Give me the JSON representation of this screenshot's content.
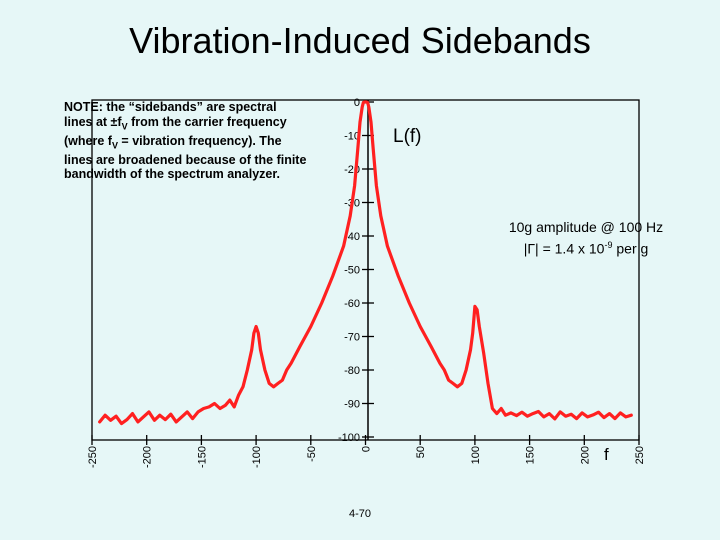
{
  "slide": {
    "title": "Vibration-Induced Sidebands",
    "footer": "4-70"
  },
  "note": {
    "lines": [
      "NOTE: the “sidebands” are spectral",
      "lines at ±f",
      "V",
      " from the carrier frequency",
      "(where f",
      "V",
      " = vibration frequency). The",
      "lines are broadened because of the finite",
      "bandwidth of the spectrum analyzer."
    ]
  },
  "annotation": {
    "line1": "10g amplitude @ 100 Hz",
    "line2_prefix": "|Γ| = 1.4 x 10",
    "line2_exp": "-9",
    "line2_suffix": " per g"
  },
  "colors": {
    "background": "#e6f7f7",
    "trace": "#ff2020",
    "axis": "#000000"
  },
  "chart_data": {
    "type": "line",
    "title": "",
    "xlabel": "f",
    "ylabel": "L(f)",
    "xlim": [
      -250,
      250
    ],
    "ylim": [
      -100,
      0
    ],
    "x_ticks": [
      -250,
      -200,
      -150,
      -100,
      -50,
      0,
      50,
      100,
      150,
      200,
      250
    ],
    "y_ticks": [
      0,
      -10,
      -20,
      -30,
      -40,
      -50,
      -60,
      -70,
      -80,
      -90,
      -100
    ],
    "series": [
      {
        "x": [
          -243,
          -238,
          -233,
          -228,
          -223,
          -218,
          -213,
          -208,
          -203,
          -198,
          -193,
          -188,
          -183,
          -178,
          -173,
          -168,
          -163,
          -158,
          -153,
          -148,
          -143,
          -138,
          -133,
          -128,
          -124,
          -120,
          -116,
          -112,
          -108,
          -104,
          -102,
          -100,
          -98,
          -96,
          -92,
          -88,
          -84,
          -80,
          -76,
          -72,
          -68,
          -60,
          -50,
          -40,
          -30,
          -20,
          -14,
          -10,
          -7,
          -5,
          -3,
          -2,
          -1,
          0,
          1,
          2,
          3,
          5,
          7,
          10,
          14,
          20,
          30,
          40,
          50,
          60,
          68,
          72,
          76,
          80,
          84,
          88,
          92,
          96,
          98,
          100,
          102,
          104,
          108,
          112,
          116,
          120,
          124,
          128,
          133,
          138,
          143,
          148,
          153,
          158,
          163,
          168,
          173,
          178,
          183,
          188,
          193,
          198,
          203,
          208,
          213,
          218,
          223,
          228,
          233,
          238,
          243
        ],
        "values": [
          -95.5,
          -93.5,
          -95,
          -93.8,
          -96,
          -94.8,
          -93,
          -95.5,
          -94,
          -92.5,
          -95,
          -93.5,
          -94.8,
          -93.2,
          -95.5,
          -94,
          -92.5,
          -94.5,
          -92.5,
          -91.5,
          -91,
          -90,
          -91.5,
          -90.5,
          -89,
          -91,
          -87.5,
          -85,
          -80,
          -74,
          -69,
          -67,
          -69,
          -74,
          -80,
          -84,
          -85,
          -84,
          -83,
          -80,
          -78,
          -73,
          -67,
          -60,
          -52,
          -43,
          -34,
          -25,
          -14,
          -6,
          -1.5,
          -0.2,
          0,
          0,
          0,
          -0.2,
          -1.5,
          -6,
          -14,
          -25,
          -34,
          -43,
          -52,
          -60,
          -67,
          -73,
          -78,
          -80,
          -83,
          -84,
          -85,
          -84,
          -80,
          -74,
          -69,
          -61,
          -62,
          -67,
          -75,
          -84,
          -91.5,
          -93,
          -91.5,
          -93.5,
          -92.8,
          -93.6,
          -92.6,
          -93.8,
          -93,
          -92.4,
          -94,
          -93,
          -94.6,
          -92.5,
          -93.8,
          -93.2,
          -94.5,
          -92.8,
          -94,
          -93.4,
          -92.6,
          -94.2,
          -93,
          -94.5,
          -92.8,
          -94,
          -93.5
        ]
      }
    ]
  }
}
